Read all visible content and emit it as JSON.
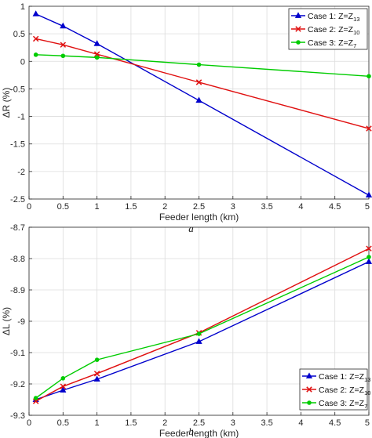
{
  "chart_data": [
    {
      "type": "line",
      "panel_label": "a",
      "xlabel": "Feeder length (km)",
      "ylabel": "ΔR (%)",
      "xlim": [
        0,
        5
      ],
      "ylim": [
        -2.5,
        1
      ],
      "xticks": [
        "0",
        "0.5",
        "1",
        "1.5",
        "2",
        "2.5",
        "3",
        "3.5",
        "4",
        "4.5",
        "5"
      ],
      "yticks": [
        "1",
        "0.5",
        "0",
        "-0.5",
        "-1",
        "-1.5",
        "-2",
        "-2.5"
      ],
      "grid": true,
      "legend_position": "top-right",
      "x": [
        0.1,
        0.5,
        1,
        2.5,
        5
      ],
      "series": [
        {
          "name_main": "Case 1: Z=Z",
          "name_sub": "13",
          "color": "#0000cc",
          "marker": "triangle",
          "values": [
            0.86,
            0.64,
            0.32,
            -0.71,
            -2.43
          ]
        },
        {
          "name_main": "Case 2: Z=Z",
          "name_sub": "10",
          "color": "#e01010",
          "marker": "x",
          "values": [
            0.41,
            0.3,
            0.13,
            -0.38,
            -1.22
          ]
        },
        {
          "name_main": "Case 3: Z=Z",
          "name_sub": "7",
          "color": "#00cc00",
          "marker": "dot",
          "values": [
            0.12,
            0.1,
            0.07,
            -0.06,
            -0.27
          ]
        }
      ]
    },
    {
      "type": "line",
      "panel_label": "b",
      "xlabel": "Feeder length (km)",
      "ylabel": "ΔL (%)",
      "xlim": [
        0,
        5
      ],
      "ylim": [
        -9.3,
        -8.7
      ],
      "xticks": [
        "0",
        "0.5",
        "1",
        "1.5",
        "2",
        "2.5",
        "3",
        "3.5",
        "4",
        "4.5",
        "5"
      ],
      "yticks": [
        "-8.7",
        "-8.8",
        "-8.9",
        "-9",
        "-9.1",
        "-9.2",
        "-9.3"
      ],
      "grid": true,
      "legend_position": "bottom-right",
      "x": [
        0.1,
        0.5,
        1,
        2.5,
        5
      ],
      "series": [
        {
          "name_main": "Case 1: Z=Z",
          "name_sub": "13",
          "color": "#0000cc",
          "marker": "triangle",
          "values": [
            -9.25,
            -9.22,
            -9.185,
            -9.065,
            -8.81
          ]
        },
        {
          "name_main": "Case 2: Z=Z",
          "name_sub": "10",
          "color": "#e01010",
          "marker": "x",
          "values": [
            -9.255,
            -9.208,
            -9.167,
            -9.037,
            -8.768
          ]
        },
        {
          "name_main": "Case 3: Z=Z",
          "name_sub": "7",
          "color": "#00cc00",
          "marker": "dot",
          "values": [
            -9.245,
            -9.182,
            -9.123,
            -9.04,
            -8.795
          ]
        }
      ]
    }
  ]
}
